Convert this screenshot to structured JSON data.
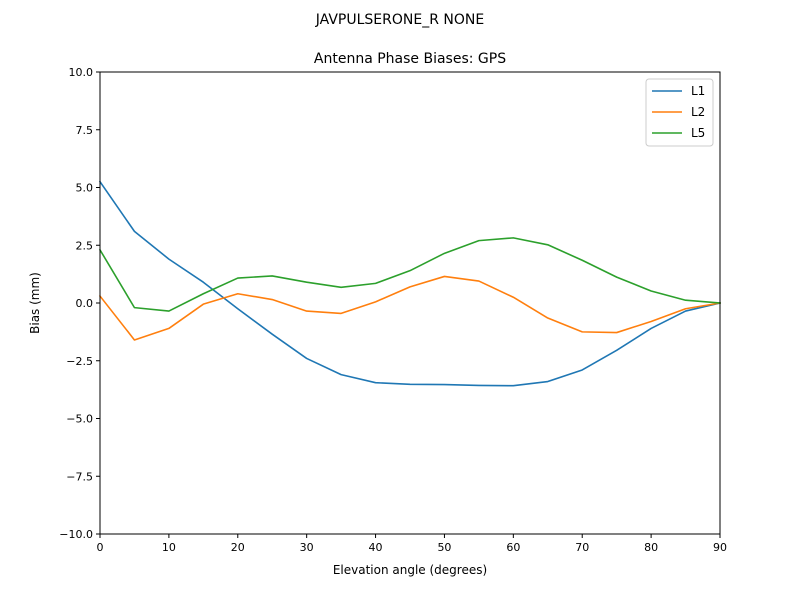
{
  "figure": {
    "suptitle": "JAVPULSERONE_R  NONE"
  },
  "chart_data": {
    "type": "line",
    "title": "Antenna Phase Biases: GPS",
    "xlabel": "Elevation angle (degrees)",
    "ylabel": "Bias (mm)",
    "xlim": [
      0,
      90
    ],
    "ylim": [
      -10,
      10
    ],
    "x_ticks": [
      0,
      10,
      20,
      30,
      40,
      50,
      60,
      70,
      80,
      90
    ],
    "x_tick_labels": [
      "0",
      "10",
      "20",
      "30",
      "40",
      "50",
      "60",
      "70",
      "80",
      "90"
    ],
    "y_ticks": [
      -10,
      -7.5,
      -5,
      -2.5,
      0,
      2.5,
      5,
      7.5,
      10
    ],
    "y_tick_labels": [
      "−10.0",
      "−7.5",
      "−5.0",
      "−2.5",
      "0.0",
      "2.5",
      "5.0",
      "7.5",
      "10.0"
    ],
    "grid": false,
    "legend_position": "top-right",
    "x": [
      0,
      5,
      10,
      15,
      20,
      25,
      30,
      35,
      40,
      45,
      50,
      55,
      60,
      65,
      70,
      75,
      80,
      85,
      90
    ],
    "series": [
      {
        "name": "L1",
        "color": "#1f77b4",
        "values": [
          5.25,
          3.1,
          1.9,
          0.9,
          -0.25,
          -1.35,
          -2.4,
          -3.1,
          -3.45,
          -3.52,
          -3.53,
          -3.57,
          -3.58,
          -3.4,
          -2.9,
          -2.05,
          -1.1,
          -0.35,
          0.0
        ]
      },
      {
        "name": "L2",
        "color": "#ff7f0e",
        "values": [
          0.3,
          -1.6,
          -1.1,
          -0.05,
          0.4,
          0.15,
          -0.35,
          -0.45,
          0.05,
          0.7,
          1.15,
          0.95,
          0.25,
          -0.65,
          -1.25,
          -1.28,
          -0.8,
          -0.25,
          0.0
        ]
      },
      {
        "name": "L5",
        "color": "#2ca02c",
        "values": [
          2.3,
          -0.2,
          -0.35,
          0.4,
          1.08,
          1.17,
          0.9,
          0.68,
          0.85,
          1.4,
          2.15,
          2.7,
          2.82,
          2.52,
          1.85,
          1.12,
          0.52,
          0.12,
          0.0
        ]
      }
    ]
  }
}
